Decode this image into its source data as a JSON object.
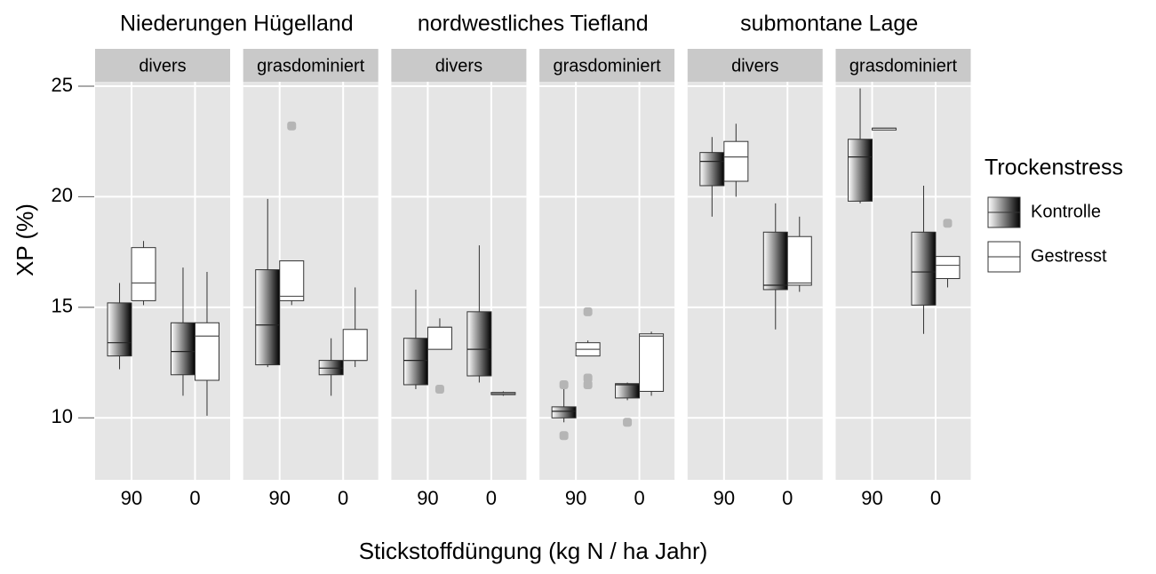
{
  "chart_data": {
    "type": "boxplot",
    "y_label": "XP (%)",
    "x_label": "Stickstoffdüngung (kg N / ha Jahr)",
    "legend_title": "Trockenstress",
    "categories": [
      "90",
      "0"
    ],
    "series": [
      {
        "name": "Kontrolle",
        "color": "#3a3a3a"
      },
      {
        "name": "Gestresst",
        "color": "#ffffff"
      }
    ],
    "ylim": [
      7.2,
      25.2
    ],
    "yticks": [
      10,
      15,
      20,
      25
    ],
    "grid": true,
    "regions": [
      {
        "title": "Niederungen Hügelland",
        "panels": [
          {
            "strip": "divers",
            "boxes": [
              [
                {
                  "low": 12.2,
                  "q1": 12.8,
                  "median": 13.4,
                  "q3": 15.2,
                  "high": 16.1,
                  "outliers": []
                },
                {
                  "low": 15.1,
                  "q1": 15.3,
                  "median": 16.1,
                  "q3": 17.7,
                  "high": 18.0,
                  "outliers": []
                }
              ],
              [
                {
                  "low": 11.0,
                  "q1": 11.95,
                  "median": 13.0,
                  "q3": 14.3,
                  "high": 16.8,
                  "outliers": []
                },
                {
                  "low": 10.1,
                  "q1": 11.7,
                  "median": 13.7,
                  "q3": 14.3,
                  "high": 16.6,
                  "outliers": []
                }
              ]
            ]
          },
          {
            "strip": "grasdominiert",
            "boxes": [
              [
                {
                  "low": 12.3,
                  "q1": 12.4,
                  "median": 14.2,
                  "q3": 16.7,
                  "high": 19.9,
                  "outliers": []
                },
                {
                  "low": 15.1,
                  "q1": 15.3,
                  "median": 15.5,
                  "q3": 17.1,
                  "high": 17.1,
                  "outliers": [
                    23.2
                  ]
                }
              ],
              [
                {
                  "low": 11.0,
                  "q1": 11.95,
                  "median": 12.25,
                  "q3": 12.6,
                  "high": 13.6,
                  "outliers": []
                },
                {
                  "low": 12.3,
                  "q1": 12.6,
                  "median": 12.6,
                  "q3": 14.0,
                  "high": 15.9,
                  "outliers": []
                }
              ]
            ]
          }
        ]
      },
      {
        "title": "nordwestliches Tiefland",
        "panels": [
          {
            "strip": "divers",
            "boxes": [
              [
                {
                  "low": 11.3,
                  "q1": 11.5,
                  "median": 12.6,
                  "q3": 13.6,
                  "high": 15.8,
                  "outliers": []
                },
                {
                  "low": 13.1,
                  "q1": 13.1,
                  "median": 14.1,
                  "q3": 14.1,
                  "high": 14.5,
                  "outliers": [
                    11.3
                  ]
                }
              ],
              [
                {
                  "low": 11.6,
                  "q1": 11.9,
                  "median": 13.1,
                  "q3": 14.8,
                  "high": 17.8,
                  "outliers": []
                },
                {
                  "low": 11.0,
                  "q1": 11.05,
                  "median": 11.1,
                  "q3": 11.15,
                  "high": 11.2,
                  "outliers": []
                }
              ]
            ]
          },
          {
            "strip": "grasdominiert",
            "boxes": [
              [
                {
                  "low": 9.8,
                  "q1": 10.0,
                  "median": 10.3,
                  "q3": 10.5,
                  "high": 11.5,
                  "outliers": [
                    11.5,
                    9.2
                  ]
                },
                {
                  "low": 12.8,
                  "q1": 12.8,
                  "median": 13.1,
                  "q3": 13.4,
                  "high": 13.5,
                  "outliers": [
                    14.8,
                    11.8,
                    11.5
                  ]
                }
              ],
              [
                {
                  "low": 10.8,
                  "q1": 10.9,
                  "median": 11.5,
                  "q3": 11.55,
                  "high": 11.6,
                  "outliers": [
                    9.8
                  ]
                },
                {
                  "low": 11.0,
                  "q1": 11.2,
                  "median": 13.7,
                  "q3": 13.8,
                  "high": 13.9,
                  "outliers": []
                }
              ]
            ]
          }
        ]
      },
      {
        "title": "submontane Lage",
        "panels": [
          {
            "strip": "divers",
            "boxes": [
              [
                {
                  "low": 19.1,
                  "q1": 20.5,
                  "median": 21.6,
                  "q3": 22.0,
                  "high": 22.7,
                  "outliers": []
                },
                {
                  "low": 20.0,
                  "q1": 20.7,
                  "median": 21.8,
                  "q3": 22.5,
                  "high": 23.3,
                  "outliers": []
                }
              ],
              [
                {
                  "low": 14.0,
                  "q1": 15.8,
                  "median": 16.0,
                  "q3": 18.4,
                  "high": 19.7,
                  "outliers": []
                },
                {
                  "low": 15.7,
                  "q1": 16.0,
                  "median": 16.1,
                  "q3": 18.2,
                  "high": 19.1,
                  "outliers": []
                }
              ]
            ]
          },
          {
            "strip": "grasdominiert",
            "boxes": [
              [
                {
                  "low": 19.7,
                  "q1": 19.8,
                  "median": 21.8,
                  "q3": 22.6,
                  "high": 24.9,
                  "outliers": []
                },
                {
                  "low": 23.1,
                  "q1": 23.1,
                  "median": 23.1,
                  "q3": 23.1,
                  "high": 23.1,
                  "outliers": []
                }
              ],
              [
                {
                  "low": 13.8,
                  "q1": 15.1,
                  "median": 16.6,
                  "q3": 18.4,
                  "high": 20.5,
                  "outliers": []
                },
                {
                  "low": 15.9,
                  "q1": 16.3,
                  "median": 16.9,
                  "q3": 17.3,
                  "high": 17.3,
                  "outliers": [
                    18.8
                  ]
                }
              ]
            ]
          }
        ]
      }
    ]
  }
}
